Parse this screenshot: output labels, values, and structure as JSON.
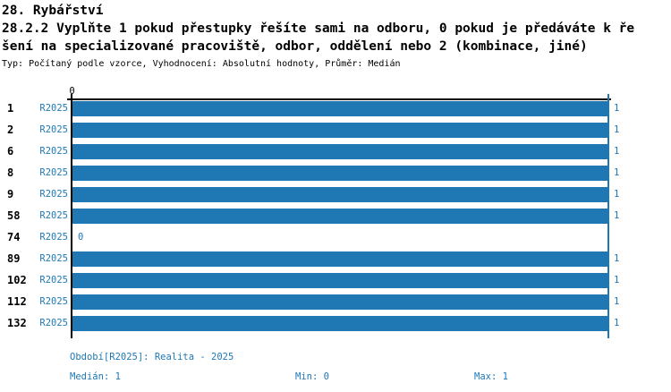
{
  "header": {
    "title_line1": "28. Rybářství",
    "title_line2": "28.2.2 Vyplňte 1 pokud přestupky řešíte sami na odboru, 0 pokud je předáváte k ře",
    "title_line3": "šení na specializované pracoviště, odbor, oddělení nebo 2 (kombinace, jiné)",
    "meta": "Typ: Počítaný podle vzorce, Vyhodnocení: Absolutní hodnoty, Průměr: Medián"
  },
  "chart_data": {
    "type": "bar",
    "orientation": "horizontal",
    "title": "28.2.2 Vyplňte 1 pokud přestupky řešíte sami na odboru, 0 pokud je předáváte k řešení na specializované pracoviště, odbor, oddělení nebo 2 (kombinace, jiné)",
    "categories": [
      "1",
      "2",
      "6",
      "8",
      "9",
      "58",
      "74",
      "89",
      "102",
      "112",
      "132"
    ],
    "series": [
      {
        "name": "R2025",
        "values": [
          1,
          1,
          1,
          1,
          1,
          1,
          0,
          1,
          1,
          1,
          1
        ]
      }
    ],
    "value_labels": [
      "1",
      "1",
      "1",
      "1",
      "1",
      "1",
      "0",
      "1",
      "1",
      "1",
      "1"
    ],
    "xlim": [
      0,
      1
    ],
    "x_tick_labels": [
      "0"
    ],
    "grid": false,
    "legend_position": "none",
    "max_reference_line": 1
  },
  "footer": {
    "period": "Období[R2025]: Realita - 2025",
    "median": "Medián: 1",
    "min": "Min: 0",
    "max": "Max: 1"
  },
  "colors": {
    "accent": "#1f77b4",
    "axis": "#000000",
    "background": "#ffffff"
  }
}
